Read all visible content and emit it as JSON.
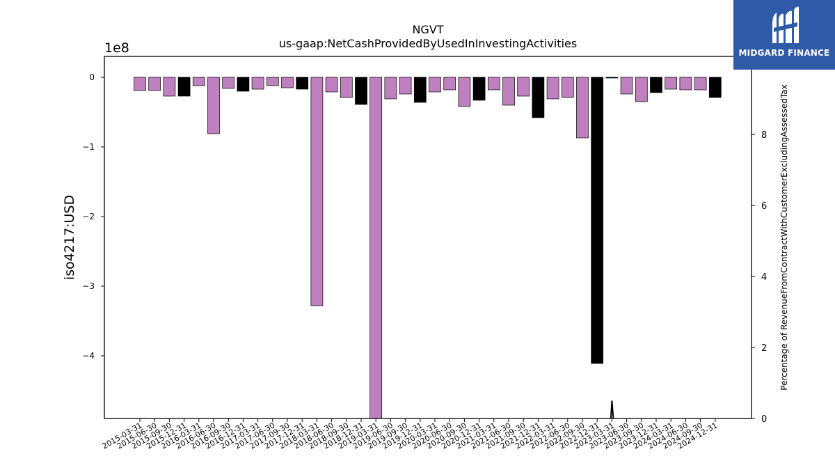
{
  "brand": {
    "name": "MIDGARD FINANCE",
    "bg_color": "#2f5aa8",
    "icon": "midgard-logo-icon"
  },
  "chart_data": {
    "type": "bar",
    "title": "NGVT",
    "subtitle": "us-gaap:NetCashProvidedByUsedInInvestingActivities",
    "ylabel": "iso4217:USD",
    "y_offset_label": "1e8",
    "y_scale": 100000000,
    "ylim": [
      -490000000,
      30000000
    ],
    "y_ticks": [
      0,
      -100000000,
      -200000000,
      -300000000,
      -400000000
    ],
    "y_tick_labels": [
      "0",
      "−1",
      "−2",
      "−3",
      "−4"
    ],
    "y2label": "Percentage of RevenueFromContractWithCustomerExcludingAssessedTax",
    "y2lim": [
      0,
      10.2
    ],
    "y2_ticks": [
      0,
      2,
      4,
      6,
      8,
      10
    ],
    "y2_tick_labels": [
      "0",
      "2",
      "4",
      "6",
      "8",
      "10"
    ],
    "grid": false,
    "colors": {
      "purple": "#bf80bf",
      "black": "#000000"
    },
    "categories": [
      "2015-03-31",
      "2015-06-30",
      "2015-09-30",
      "2015-12-31",
      "2016-03-31",
      "2016-06-30",
      "2016-09-30",
      "2016-12-31",
      "2017-03-31",
      "2017-06-30",
      "2017-09-30",
      "2017-12-31",
      "2018-03-31",
      "2018-06-30",
      "2018-09-30",
      "2018-12-31",
      "2019-03-31",
      "2019-06-30",
      "2019-09-30",
      "2019-12-31",
      "2020-03-31",
      "2020-06-30",
      "2020-09-30",
      "2020-12-31",
      "2021-03-31",
      "2021-06-30",
      "2021-09-30",
      "2021-12-31",
      "2022-03-31",
      "2022-06-30",
      "2022-09-30",
      "2022-12-31",
      "2023-03-31",
      "2023-06-30",
      "2023-09-30",
      "2023-12-31",
      "2024-03-31",
      "2024-06-30",
      "2024-09-30",
      "2024-12-31"
    ],
    "values": [
      -19000000,
      -19000000,
      -27000000,
      -27000000,
      -12000000,
      -81000000,
      -16000000,
      -20000000,
      -17000000,
      -12000000,
      -15000000,
      -17000000,
      -328000000,
      -21000000,
      -29000000,
      -39000000,
      -490000000,
      -31000000,
      -24000000,
      -36000000,
      -21000000,
      -18000000,
      -42000000,
      -33000000,
      -18000000,
      -40000000,
      -27000000,
      -58000000,
      -31000000,
      -29000000,
      -87000000,
      -411000000,
      -1000000,
      -24000000,
      -35000000,
      -22000000,
      -17000000,
      -18000000,
      -18000000,
      -29000000
    ],
    "bar_colors": [
      "purple",
      "purple",
      "purple",
      "black",
      "purple",
      "purple",
      "purple",
      "black",
      "purple",
      "purple",
      "purple",
      "black",
      "purple",
      "purple",
      "purple",
      "black",
      "purple",
      "purple",
      "purple",
      "black",
      "purple",
      "purple",
      "purple",
      "black",
      "purple",
      "purple",
      "purple",
      "black",
      "purple",
      "purple",
      "purple",
      "black",
      "black",
      "purple",
      "purple",
      "black",
      "purple",
      "purple",
      "purple",
      "black"
    ],
    "secondary_line": {
      "category_index": 32,
      "peak_value": 0.5,
      "color": "#000000"
    }
  }
}
